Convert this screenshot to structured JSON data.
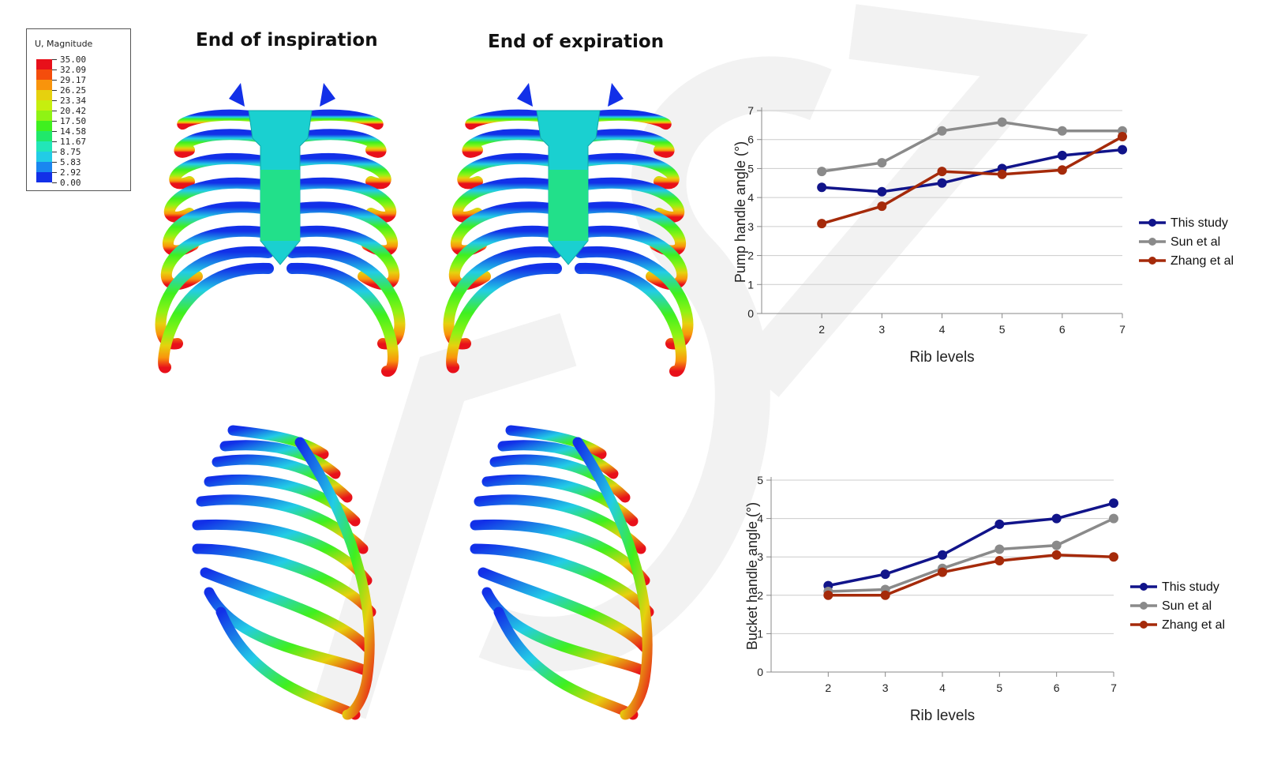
{
  "colorbar": {
    "title": "U, Magnitude",
    "levels": [
      "35.00",
      "32.09",
      "29.17",
      "26.25",
      "23.34",
      "20.42",
      "17.50",
      "14.58",
      "11.67",
      "8.75",
      "5.83",
      "2.92",
      "0.00"
    ],
    "colors": [
      "#e8101a",
      "#f44d0c",
      "#f9940c",
      "#e6d10e",
      "#c6ef0e",
      "#8ff314",
      "#3ff01f",
      "#20e86a",
      "#22e6b8",
      "#22cce6",
      "#1a86f0",
      "#1230e8"
    ]
  },
  "panels": {
    "inspiration_title": "End of inspiration",
    "expiration_title": "End of expiration"
  },
  "chart_data": [
    {
      "type": "line",
      "x": [
        2,
        3,
        4,
        5,
        6,
        7
      ],
      "xlabel": "Rib levels",
      "ylabel": "Pump handle angle (°)",
      "ylim": [
        0,
        7
      ],
      "yticks": [
        0,
        1,
        2,
        3,
        4,
        5,
        6,
        7
      ],
      "grid": true,
      "legend": "right",
      "series": [
        {
          "name": "This study",
          "color": "#11148a",
          "values": [
            4.35,
            4.2,
            4.5,
            5.0,
            5.45,
            5.65
          ]
        },
        {
          "name": "Sun et al",
          "color": "#8a8a8a",
          "values": [
            4.9,
            5.2,
            6.3,
            6.6,
            6.3,
            6.3
          ]
        },
        {
          "name": "Zhang et al",
          "color": "#a52a0a",
          "values": [
            3.1,
            3.7,
            4.9,
            4.8,
            4.95,
            6.1
          ]
        }
      ]
    },
    {
      "type": "line",
      "x": [
        2,
        3,
        4,
        5,
        6,
        7
      ],
      "xlabel": "Rib levels",
      "ylabel": "Bucket handle angle (°)",
      "ylim": [
        0,
        5
      ],
      "yticks": [
        0,
        1,
        2,
        3,
        4,
        5
      ],
      "grid": true,
      "legend": "right",
      "series": [
        {
          "name": "This study",
          "color": "#11148a",
          "values": [
            2.25,
            2.55,
            3.05,
            3.85,
            4.0,
            4.4
          ]
        },
        {
          "name": "Sun et al",
          "color": "#8a8a8a",
          "values": [
            2.1,
            2.15,
            2.7,
            3.2,
            3.3,
            4.0
          ]
        },
        {
          "name": "Zhang et al",
          "color": "#a52a0a",
          "values": [
            2.0,
            2.0,
            2.6,
            2.9,
            3.05,
            3.0
          ]
        }
      ]
    }
  ]
}
